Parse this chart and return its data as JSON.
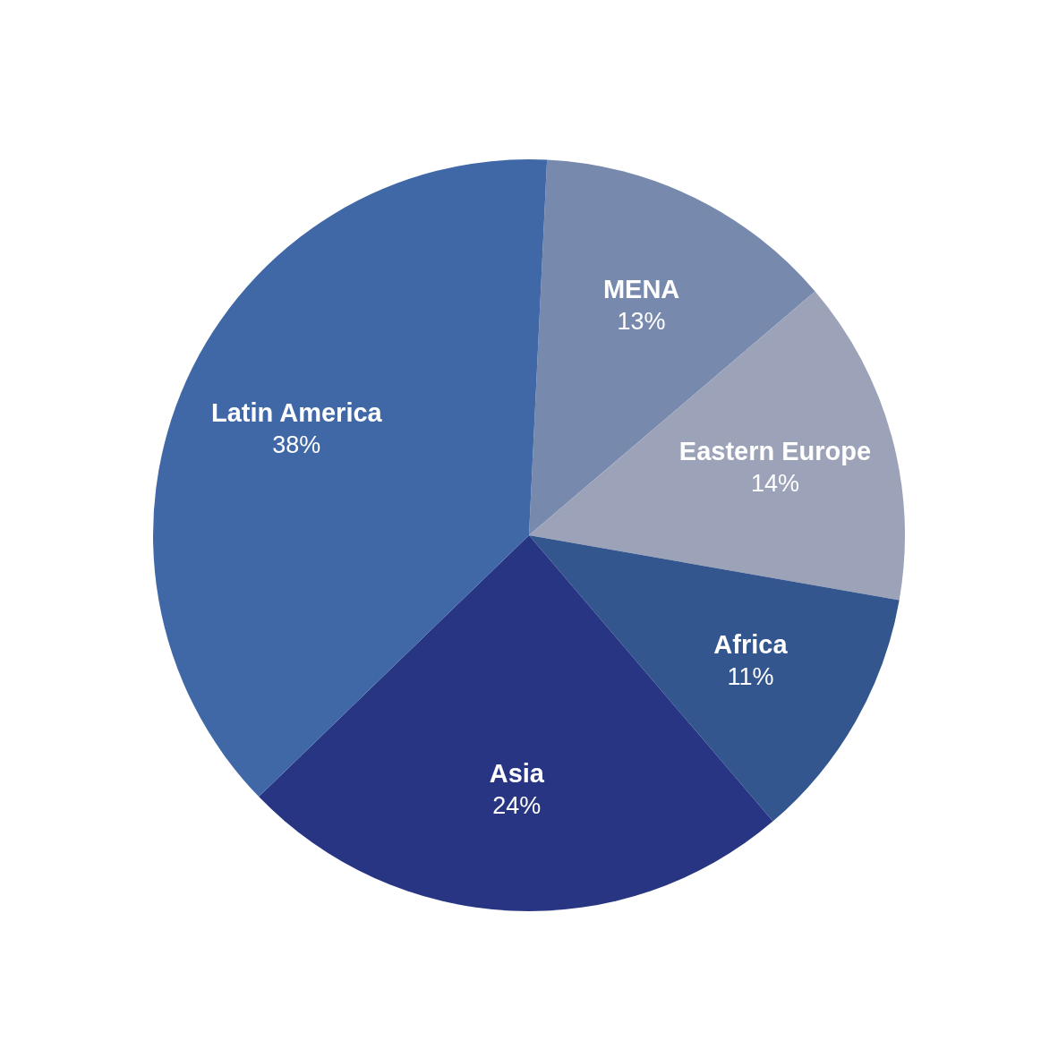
{
  "chart_data": {
    "type": "pie",
    "categories": [
      "MENA",
      "Eastern Europe",
      "Africa",
      "Asia",
      "Latin America"
    ],
    "values": [
      13,
      14,
      11,
      24,
      38
    ],
    "value_labels": [
      "13%",
      "14%",
      "11%",
      "24%",
      "38%"
    ],
    "colors": [
      "#7889ae",
      "#9ca3b9",
      "#33568e",
      "#283583",
      "#4068a7"
    ]
  }
}
